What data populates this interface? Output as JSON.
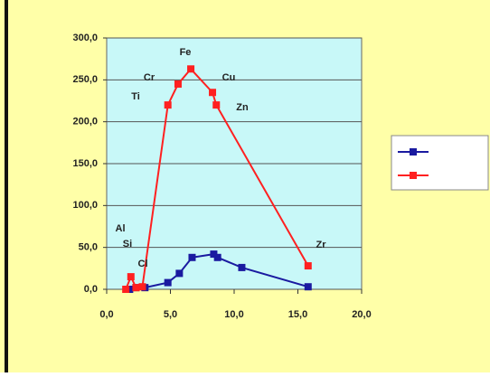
{
  "chart_data": {
    "type": "line",
    "x_lim_note_free": null,
    "xlim": [
      0,
      20
    ],
    "xticks": [
      {
        "value": 0,
        "label": "0,0"
      },
      {
        "value": 5,
        "label": "5,0"
      },
      {
        "value": 10,
        "label": "10,0"
      },
      {
        "value": 15,
        "label": "15,0"
      },
      {
        "value": 20,
        "label": "20,0"
      }
    ],
    "ylim": [
      0,
      300
    ],
    "yticks": [
      {
        "value": 0,
        "label": "0,0"
      },
      {
        "value": 50,
        "label": "50,0"
      },
      {
        "value": 100,
        "label": "100,0"
      },
      {
        "value": 150,
        "label": "150,0"
      },
      {
        "value": 200,
        "label": "200,0"
      },
      {
        "value": 250,
        "label": "250,0"
      },
      {
        "value": 300,
        "label": "300,0"
      }
    ],
    "grid": true,
    "legend": "right",
    "series": [
      {
        "color": "#1a1aa0",
        "x": [
          1.8,
          2.3,
          3.0,
          4.8,
          5.7,
          6.7,
          8.4,
          8.7,
          10.6,
          15.8
        ],
        "values": [
          0,
          2,
          2,
          8,
          19,
          38,
          42,
          38,
          26,
          3
        ]
      },
      {
        "color": "#ff2020",
        "x": [
          1.5,
          1.9,
          2.3,
          2.8,
          4.8,
          5.6,
          6.6,
          8.3,
          8.6,
          15.8
        ],
        "values": [
          0,
          15,
          2,
          3,
          220,
          245,
          263,
          235,
          220,
          28
        ]
      }
    ],
    "annotations": [
      "Al",
      "Si",
      "Cl",
      "Ti",
      "Cr",
      "Fe",
      "Cu",
      "Zn",
      "Zr"
    ]
  }
}
